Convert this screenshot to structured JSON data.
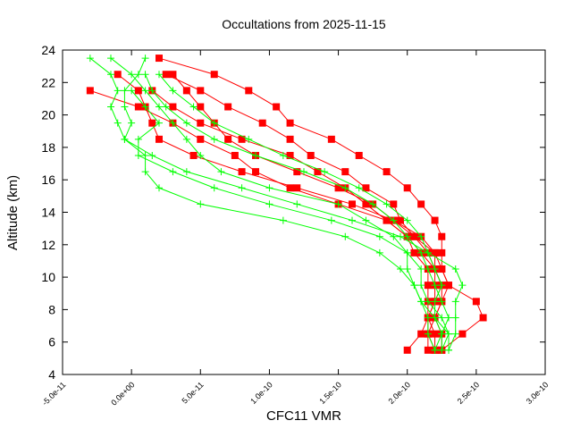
{
  "chart_data": {
    "type": "line",
    "title": "Occultations from 2025-11-15",
    "xlabel": "CFC11 VMR",
    "ylabel": "Altitude (km)",
    "xlim": [
      -5e-11,
      3e-10
    ],
    "ylim": [
      4,
      24
    ],
    "xticks": [
      -5e-11,
      0,
      5e-11,
      1e-10,
      1.5e-10,
      2e-10,
      2.5e-10,
      3e-10
    ],
    "xtick_labels": [
      "-5.0e-11",
      "0.0e+00",
      "5.0e-11",
      "1.0e-10",
      "1.5e-10",
      "2.0e-10",
      "2.5e-10",
      "3.0e-10"
    ],
    "yticks": [
      4,
      6,
      8,
      10,
      12,
      14,
      16,
      18,
      20,
      22,
      24
    ],
    "ytick_labels": [
      "4",
      "6",
      "8",
      "10",
      "12",
      "14",
      "16",
      "18",
      "20",
      "22",
      "24"
    ],
    "grid": false,
    "altitudes": [
      23.5,
      22.5,
      21.5,
      20.5,
      19.5,
      18.5,
      17.5,
      16.5,
      15.5,
      14.5,
      13.5,
      12.5,
      11.5,
      10.5,
      9.5,
      8.5,
      7.5,
      6.5,
      5.5
    ],
    "series": [
      {
        "color": "#ff0000",
        "marker": "square",
        "x": [
          2e-11,
          6e-11,
          8.5e-11,
          1.05e-10,
          1.15e-10,
          1.45e-10,
          1.65e-10,
          1.85e-10,
          2e-10,
          2.1e-10,
          2.2e-10,
          2.25e-10,
          2.25e-10,
          2.25e-10,
          2.3e-10,
          2.5e-10,
          2.55e-10,
          2.4e-10,
          2.25e-10
        ]
      },
      {
        "color": "#ff0000",
        "marker": "square",
        "x": [
          null,
          2.5e-11,
          5e-11,
          7e-11,
          9.5e-11,
          1.15e-10,
          1.3e-10,
          1.55e-10,
          1.7e-10,
          1.9e-10,
          1.95e-10,
          2.05e-10,
          2.15e-10,
          2.2e-10,
          2.2e-10,
          2.2e-10,
          2.15e-10,
          2.15e-10,
          2.15e-10
        ]
      },
      {
        "color": "#ff0000",
        "marker": "square",
        "x": [
          null,
          null,
          -3e-11,
          5e-12,
          3e-11,
          5e-11,
          7.5e-11,
          9e-11,
          1.15e-10,
          1.5e-10,
          1.85e-10,
          2e-10,
          2.05e-10,
          2.15e-10,
          2.15e-10,
          2.15e-10,
          2.15e-10,
          2.1e-10,
          2e-10
        ]
      },
      {
        "color": "#ff0000",
        "marker": "square",
        "x": [
          null,
          -1e-11,
          5e-12,
          1e-11,
          1.5e-11,
          2e-11,
          4.5e-11,
          8e-11,
          1.2e-10,
          1.6e-10,
          1.9e-10,
          2.05e-10,
          2.2e-10,
          2.2e-10,
          2.25e-10,
          2.25e-10,
          2.2e-10,
          2.25e-10,
          2.25e-10
        ]
      },
      {
        "color": "#ff0000",
        "marker": "square",
        "x": [
          null,
          3e-11,
          4e-11,
          5e-11,
          6e-11,
          7e-11,
          9e-11,
          1.2e-10,
          1.5e-10,
          1.75e-10,
          1.9e-10,
          2.1e-10,
          2.2e-10,
          2.25e-10,
          2.3e-10,
          2.25e-10,
          2.2e-10,
          2.15e-10,
          2.2e-10
        ]
      },
      {
        "color": "#ff0000",
        "marker": "square",
        "x": [
          null,
          null,
          1.5e-11,
          3e-11,
          5e-11,
          8e-11,
          1.15e-10,
          1.35e-10,
          1.55e-10,
          1.7e-10,
          1.85e-10,
          2e-10,
          2.1e-10,
          2.2e-10,
          2.25e-10,
          2.2e-10,
          2.15e-10,
          2.2e-10,
          2.2e-10
        ]
      },
      {
        "color": "#00ff00",
        "marker": "plus",
        "x": [
          -3e-11,
          -1.5e-11,
          -1e-11,
          -1.5e-11,
          -1e-11,
          -5e-12,
          1e-11,
          1e-11,
          2e-11,
          5e-11,
          1.1e-10,
          1.55e-10,
          1.8e-10,
          1.95e-10,
          2.05e-10,
          2.1e-10,
          2.15e-10,
          2.15e-10,
          2.2e-10
        ]
      },
      {
        "color": "#00ff00",
        "marker": "plus",
        "x": [
          -1.5e-11,
          0,
          1e-11,
          2e-11,
          3e-11,
          4e-11,
          5e-11,
          6.5e-11,
          1e-10,
          1.5e-10,
          1.7e-10,
          1.9e-10,
          2e-10,
          2e-10,
          2.05e-10,
          2.1e-10,
          2.2e-10,
          2.25e-10,
          2.25e-10
        ]
      },
      {
        "color": "#00ff00",
        "marker": "plus",
        "x": [
          1e-11,
          5e-12,
          -5e-12,
          -5e-12,
          0,
          -5e-12,
          1.5e-11,
          4e-11,
          8e-11,
          1.2e-10,
          1.6e-10,
          1.95e-10,
          2.15e-10,
          2.35e-10,
          2.4e-10,
          2.35e-10,
          2.35e-10,
          2.35e-10,
          2.3e-10
        ]
      },
      {
        "color": "#00ff00",
        "marker": "plus",
        "x": [
          null,
          1e-11,
          1.5e-11,
          2.5e-11,
          4e-11,
          6e-11,
          9e-11,
          1.25e-10,
          1.55e-10,
          1.75e-10,
          1.9e-10,
          2e-10,
          2.1e-10,
          2.15e-10,
          2.2e-10,
          2.25e-10,
          2.3e-10,
          2.25e-10,
          2.2e-10
        ]
      },
      {
        "color": "#00ff00",
        "marker": "plus",
        "x": [
          null,
          null,
          0,
          1e-11,
          2e-11,
          5e-12,
          5e-12,
          3e-11,
          6e-11,
          1e-10,
          1.45e-10,
          1.8e-10,
          2e-10,
          2.1e-10,
          2.1e-10,
          2.15e-10,
          2.25e-10,
          2.3e-10,
          2.25e-10
        ]
      },
      {
        "color": "#00ff00",
        "marker": "plus",
        "x": [
          null,
          2e-11,
          3e-11,
          4.5e-11,
          6e-11,
          8.5e-11,
          1.1e-10,
          1.4e-10,
          1.65e-10,
          1.85e-10,
          2e-10,
          2.1e-10,
          2.15e-10,
          2.2e-10,
          2.25e-10,
          2.2e-10,
          2.2e-10,
          2.3e-10,
          2.3e-10
        ]
      }
    ]
  }
}
